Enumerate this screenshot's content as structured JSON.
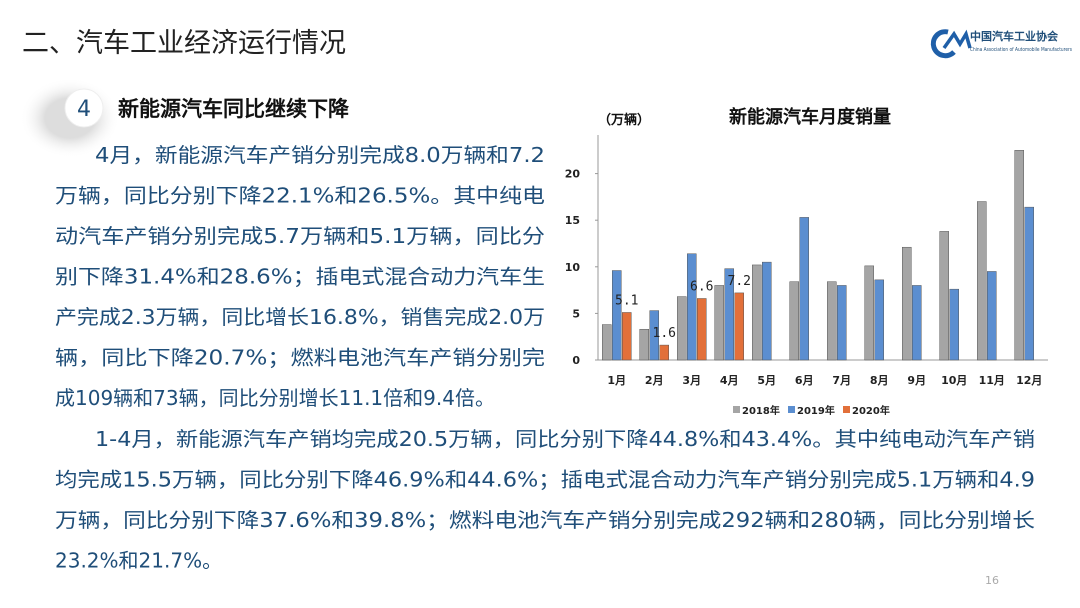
{
  "header": {
    "title": "二、汽车工业经济运行情况",
    "logo_cn": "中国汽车工业协会",
    "logo_en": "China Association of Automobile Manufacturers"
  },
  "section": {
    "number": "4",
    "heading": "新能源汽车同比继续下降"
  },
  "paragraphs": [
    [
      "4月，新能源汽车产销分别完成8.0万辆和7.2",
      "万辆，同比分别下降22.1%和26.5%。其中纯电",
      "动汽车产销分别完成5.7万辆和5.1万辆，同比分",
      "别下降31.4%和28.6%；插电式混合动力汽车生",
      "产完成2.3万辆，同比增长16.8%，销售完成2.0万",
      "辆，同比下降20.7%；燃料电池汽车产销分别完",
      "成109辆和73辆，同比分别增长11.1倍和9.4倍。"
    ],
    [
      "1-4月，新能源汽车产销均完成20.5万辆，同比分别下降44.8%和43.4%。其中纯电动汽车产销",
      "均完成15.5万辆，同比分别下降46.9%和44.6%；插电式混合动力汽车产销分别完成5.1万辆和4.9",
      "万辆，同比分别下降37.6%和39.8%；燃料电池汽车产销分别完成292辆和280辆，同比分别增长",
      "23.2%和21.7%。"
    ]
  ],
  "chart_data": {
    "type": "bar",
    "title": "新能源汽车月度销量",
    "y_unit": "（万辆）",
    "categories": [
      "1月",
      "2月",
      "3月",
      "4月",
      "5月",
      "6月",
      "7月",
      "8月",
      "9月",
      "10月",
      "11月",
      "12月"
    ],
    "series": [
      {
        "name": "2018年",
        "color": "#a5a5a5",
        "values": [
          3.8,
          3.3,
          6.8,
          8.0,
          10.2,
          8.4,
          8.4,
          10.1,
          12.1,
          13.8,
          17.0,
          22.5
        ]
      },
      {
        "name": "2019年",
        "color": "#5b8ed0",
        "values": [
          9.6,
          5.3,
          11.4,
          9.8,
          10.5,
          15.3,
          8.0,
          8.6,
          8.0,
          7.6,
          9.5,
          16.4
        ]
      },
      {
        "name": "2020年",
        "color": "#e2703a",
        "values": [
          5.1,
          1.6,
          6.6,
          7.2,
          null,
          null,
          null,
          null,
          null,
          null,
          null,
          null
        ],
        "show_labels": true
      }
    ],
    "ylim": [
      0,
      25
    ],
    "yticks": [
      0,
      5,
      10,
      15,
      20
    ],
    "legend": "bottom"
  },
  "page_number": "16"
}
